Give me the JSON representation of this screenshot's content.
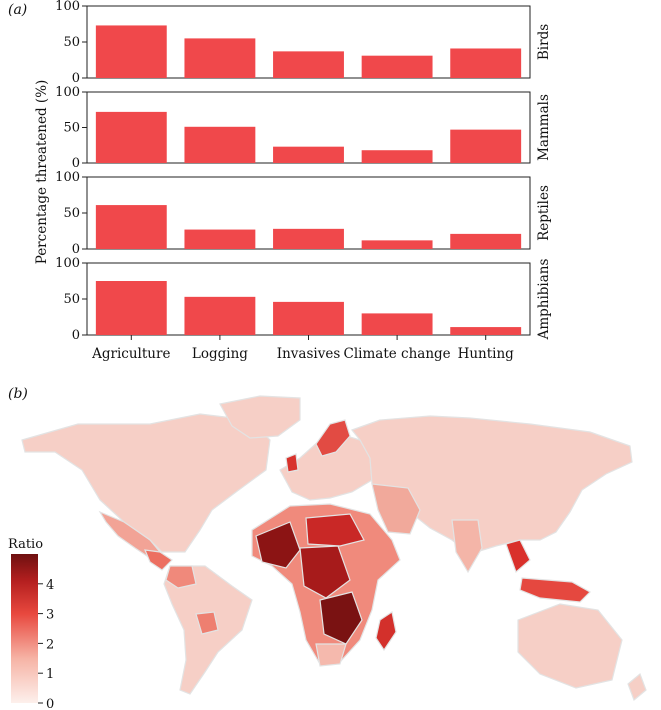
{
  "chart_data": [
    {
      "panel": "(a)",
      "type": "bar",
      "ylabel": "Percentage threatened (%)",
      "categories": [
        "Agriculture",
        "Logging",
        "Invasives",
        "Climate change",
        "Hunting"
      ],
      "ylim": [
        0,
        100
      ],
      "yticks": [
        "0",
        "50",
        "100"
      ],
      "bar_color": "#f0484b",
      "series": [
        {
          "name": "Birds",
          "values": [
            73,
            55,
            37,
            31,
            41
          ]
        },
        {
          "name": "Mammals",
          "values": [
            72,
            51,
            23,
            18,
            47
          ]
        },
        {
          "name": "Reptiles",
          "values": [
            61,
            27,
            28,
            12,
            21
          ]
        },
        {
          "name": "Amphibians",
          "values": [
            75,
            53,
            46,
            30,
            11
          ]
        }
      ]
    },
    {
      "panel": "(b)",
      "type": "heatmap",
      "legend_title": "Ratio",
      "legend_ticks": [
        "0",
        "1",
        "2",
        "3",
        "4"
      ],
      "legend_range": [
        0,
        5
      ],
      "legend_placement": "bottom-left",
      "colors": {
        "low": "#fbe7e2",
        "high": "#6e1010"
      }
    }
  ]
}
